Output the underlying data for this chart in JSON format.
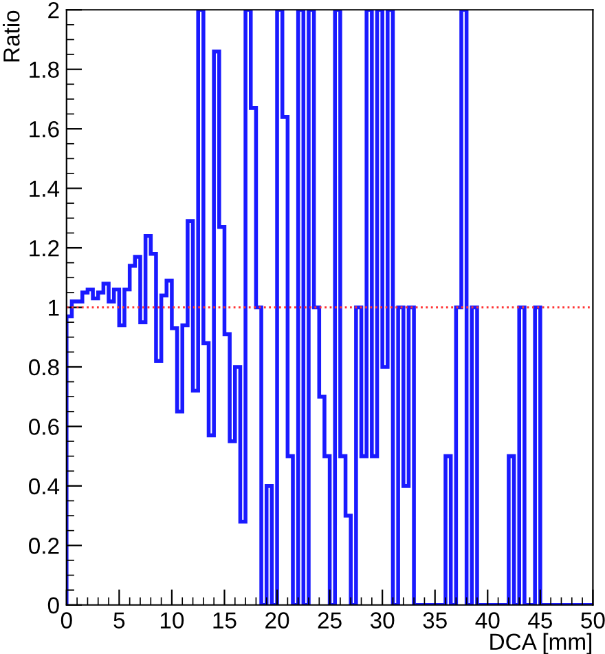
{
  "chart_data": {
    "type": "histogram",
    "xlabel": "DCA [mm]",
    "ylabel": "Ratio",
    "color": "#1a1aff",
    "bins": [
      0,
      0.5,
      1,
      1.5,
      2,
      2.5,
      3,
      3.5,
      4,
      4.5,
      5,
      5.5,
      6,
      6.5,
      7,
      7.5,
      8,
      8.5,
      9,
      9.5,
      10,
      10.5,
      11,
      11.5,
      12,
      12.5,
      13,
      13.5,
      14,
      14.5,
      15,
      15.5,
      16,
      16.5,
      17,
      17.5,
      18,
      18.5,
      19,
      19.5,
      20,
      20.5,
      21,
      21.5,
      22,
      22.5,
      23,
      23.5,
      24,
      24.5,
      25,
      25.5,
      26,
      26.5,
      27,
      27.5,
      28,
      28.5,
      29,
      29.5,
      30,
      30.5,
      31,
      31.5,
      32,
      32.5,
      33,
      33.5,
      34,
      34.5,
      35,
      35.5,
      36,
      36.5,
      37,
      37.5,
      38,
      38.5,
      39,
      39.5,
      40,
      40.5,
      41,
      41.5,
      42,
      42.5,
      43,
      43.5,
      44,
      44.5,
      45,
      45.5,
      46,
      46.5,
      47,
      47.5,
      48,
      48.5,
      49,
      49.5,
      50
    ],
    "values": [
      0.97,
      1.02,
      1.02,
      1.05,
      1.06,
      1.03,
      1.05,
      1.08,
      1.02,
      1.06,
      0.94,
      1.06,
      1.14,
      1.17,
      0.95,
      1.24,
      1.18,
      0.82,
      1.04,
      1.09,
      0.93,
      0.65,
      0.94,
      1.29,
      0.72,
      2.0,
      0.88,
      0.57,
      1.86,
      1.27,
      0.91,
      0.55,
      0.8,
      0.28,
      2.0,
      1.67,
      1.0,
      0,
      0.4,
      0,
      2.0,
      1.64,
      0.5,
      0,
      2.0,
      0,
      2.0,
      1.0,
      0.7,
      0.5,
      0,
      2.0,
      0.5,
      0.3,
      0,
      1.0,
      0.5,
      2.0,
      0.5,
      2.0,
      0.8,
      2.0,
      0,
      1.0,
      0.4,
      1.0,
      0,
      0,
      0,
      0,
      0,
      0,
      0.5,
      0,
      1.0,
      2.0,
      0,
      1.0,
      0,
      0,
      0,
      0,
      0,
      0,
      0.5,
      0,
      1.0,
      0,
      0,
      1.0,
      0,
      0,
      0,
      0,
      0,
      0,
      0,
      0,
      0,
      0
    ],
    "xlim": [
      0,
      50
    ],
    "ylim": [
      0,
      2
    ],
    "xticks": [
      0,
      5,
      10,
      15,
      20,
      25,
      30,
      35,
      40,
      45,
      50
    ],
    "yticks": [
      0,
      {
        "value": 0.2,
        "label": "0.2"
      },
      {
        "value": 0.4,
        "label": "0.4"
      },
      {
        "value": 0.6,
        "label": "0.6"
      },
      {
        "value": 0.8,
        "label": "0.8"
      },
      1,
      {
        "value": 1.2,
        "label": "1.2"
      },
      {
        "value": 1.4,
        "label": "1.4"
      },
      {
        "value": 1.6,
        "label": "1.6"
      },
      {
        "value": 1.8,
        "label": "1.8"
      },
      2
    ],
    "ref_lines": [
      {
        "axis": "y",
        "value": 1,
        "color": "#ff3333",
        "line_style": "dotted"
      }
    ]
  }
}
